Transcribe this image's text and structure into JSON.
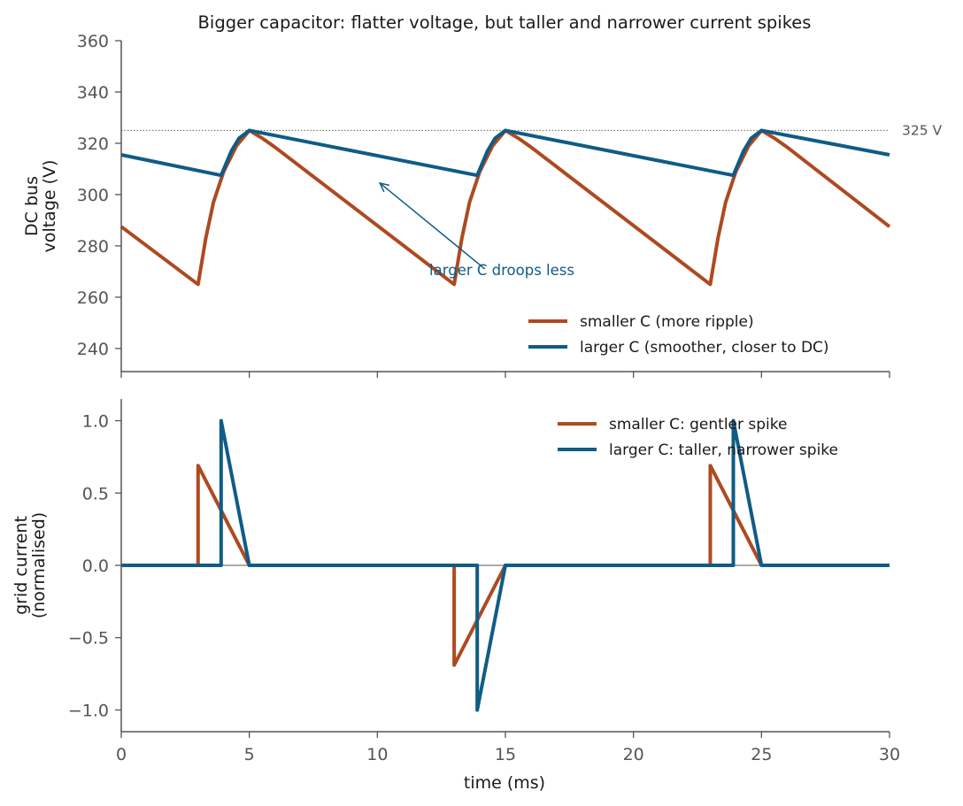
{
  "colors": {
    "smaller": "#ad4a21",
    "larger": "#0f5c86",
    "axis": "#555555",
    "ref_line": "#777777",
    "zero_line": "#777777"
  },
  "chart_data": [
    {
      "type": "line",
      "title": "Bigger capacitor: flatter voltage, but taller and narrower current spikes",
      "ylabel": [
        "DC bus",
        "voltage  (V)"
      ],
      "xlim": [
        0,
        30
      ],
      "ylim": [
        231,
        360
      ],
      "yticks": [
        240,
        260,
        280,
        300,
        320,
        340,
        360
      ],
      "xticks": [
        0,
        5,
        10,
        15,
        20,
        25,
        30
      ],
      "reference_line": {
        "y": 325,
        "label": "325 V"
      },
      "annotation": {
        "text": "larger C droops less",
        "arrow_from": [
          14.2,
          271
        ],
        "arrow_to": [
          10.1,
          304.5
        ]
      },
      "legend": {
        "placement": "lower-right"
      },
      "series": [
        {
          "name": "smaller C  (more ripple)",
          "key": "smaller",
          "x": [
            0,
            3.0,
            3.3,
            3.6,
            4.0,
            4.5,
            5.0,
            5.5,
            6.0,
            13.0,
            13.3,
            13.6,
            14.0,
            14.5,
            15.0,
            15.5,
            16.0,
            23.0,
            23.3,
            23.6,
            24.0,
            24.5,
            25.0,
            25.5,
            26.0,
            30
          ],
          "values": [
            287.5,
            265,
            283,
            297,
            309,
            319,
            325,
            322,
            318.5,
            265,
            283,
            297,
            309,
            319,
            325,
            322,
            318.5,
            265,
            283,
            297,
            309,
            319,
            325,
            322,
            318.5,
            287.5
          ]
        },
        {
          "name": "larger C  (smoother, closer to DC)",
          "key": "larger",
          "x": [
            0,
            3.9,
            4.3,
            4.6,
            5.0,
            13.9,
            14.3,
            14.6,
            15.0,
            23.9,
            24.3,
            24.6,
            25.0,
            30
          ],
          "values": [
            315.5,
            307.5,
            317,
            322,
            325,
            307.5,
            317,
            322,
            325,
            307.5,
            317,
            322,
            325,
            315.5
          ]
        }
      ]
    },
    {
      "type": "line",
      "xlabel": "time  (ms)",
      "ylabel": [
        "grid current",
        "(normalised)"
      ],
      "xlim": [
        0,
        30
      ],
      "ylim": [
        -1.15,
        1.15
      ],
      "yticks": [
        1.0,
        0.5,
        0.0,
        -0.5,
        -1.0
      ],
      "ytick_labels": [
        "1.0",
        "0.5",
        "0.0",
        "−0.5",
        "−1.0"
      ],
      "xticks": [
        0,
        5,
        10,
        15,
        20,
        25,
        30
      ],
      "legend": {
        "placement": "top-right"
      },
      "series": [
        {
          "name": "smaller C: gentler spike",
          "key": "smaller",
          "x": [
            0,
            3.0,
            3.0,
            5.0,
            13.0,
            13.0,
            15.0,
            23.0,
            23.0,
            25.0,
            30
          ],
          "values": [
            0,
            0,
            0.69,
            0,
            0,
            -0.69,
            0,
            0,
            0.69,
            0,
            0
          ]
        },
        {
          "name": "larger C: taller, narrower spike",
          "key": "larger",
          "x": [
            0,
            3.9,
            3.9,
            5.0,
            13.9,
            13.9,
            15.0,
            23.9,
            23.9,
            25.0,
            30
          ],
          "values": [
            0,
            0,
            1.0,
            0,
            0,
            -1.0,
            0,
            0,
            1.0,
            0,
            0
          ]
        }
      ]
    }
  ]
}
